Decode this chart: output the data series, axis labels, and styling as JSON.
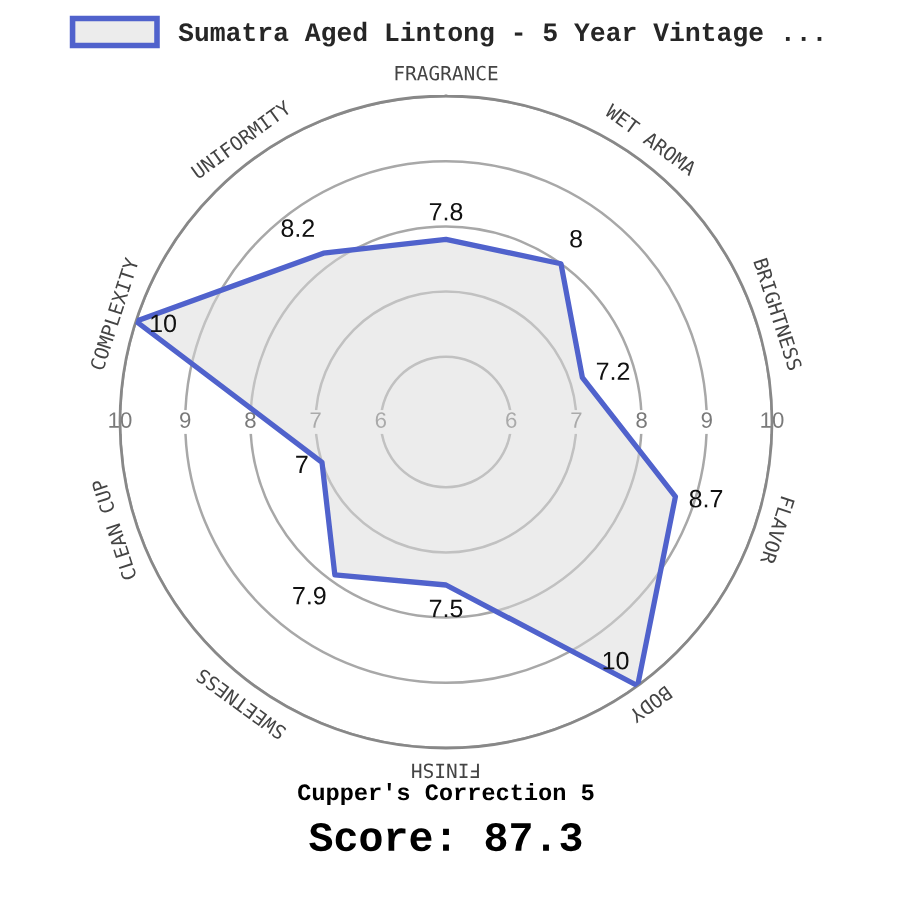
{
  "chart_data": {
    "type": "radar",
    "categories": [
      "FRAGRANCE",
      "WET AROMA",
      "BRIGHTNESS",
      "FLAVOR",
      "BODY",
      "FINISH",
      "SWEETNESS",
      "CLEAN CUP",
      "COMPLEXITY",
      "UNIFORMITY"
    ],
    "series": [
      {
        "name": "Sumatra Aged Lintong - 5 Year Vintage ...",
        "color": "#5062cc",
        "values": [
          7.8,
          8,
          7.2,
          8.7,
          10,
          7.5,
          7.9,
          7,
          10,
          8.2
        ]
      }
    ],
    "ylim": [
      5,
      10
    ],
    "yticks": [
      6,
      7,
      8,
      9,
      10,
      6,
      7,
      8,
      9,
      10
    ],
    "grid": true,
    "data_labels": true,
    "legend": "top",
    "annotations": [
      "Cupper's Correction 5",
      "Score: 87.3"
    ]
  }
}
